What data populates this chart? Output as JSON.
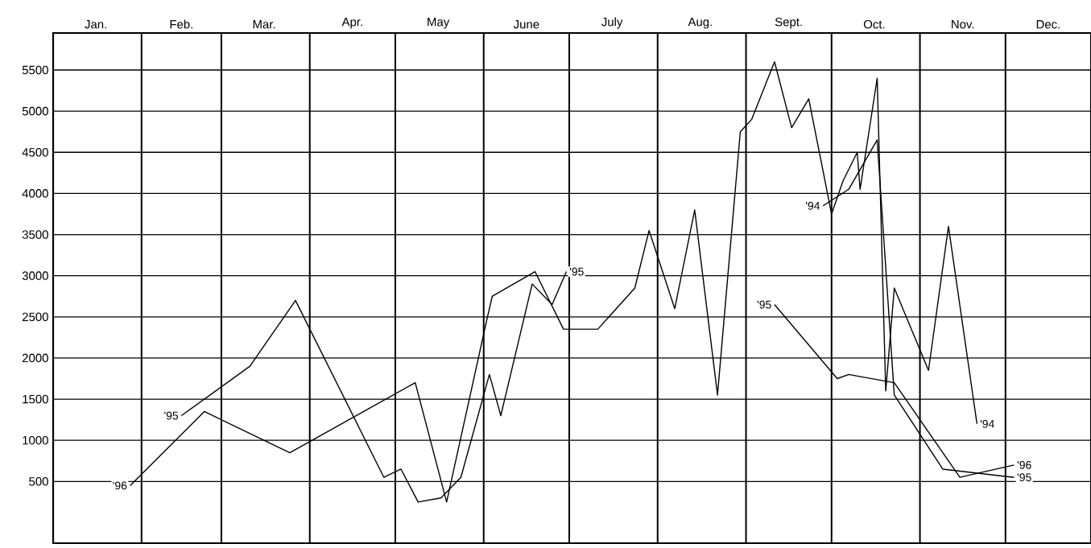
{
  "chart_data": {
    "type": "line",
    "xlim": [
      "--01-01",
      "--12-31"
    ],
    "ylim": [
      -250,
      5950
    ],
    "xticks": [
      {
        "value": "--01-01",
        "label": null
      },
      {
        "value": "--02-01",
        "label": null
      },
      {
        "value": "--03-01",
        "label": null
      },
      {
        "value": "--04-01",
        "label": null
      },
      {
        "value": "--05-01",
        "label": null
      },
      {
        "value": "--06-01",
        "label": null
      },
      {
        "value": "--07-01",
        "label": null
      },
      {
        "value": "--08-01",
        "label": null
      },
      {
        "value": "--09-01",
        "label": null
      },
      {
        "value": "--10-01",
        "label": null
      },
      {
        "value": "--11-01",
        "label": null
      },
      {
        "value": "--12-01",
        "label": null
      },
      {
        "value": "--01-16",
        "label": "Jan."
      },
      {
        "value": "--02-15",
        "label": "Feb."
      },
      {
        "value": "--03-16",
        "label": "Mar."
      },
      {
        "value": "--04-16",
        "label": "Apr."
      },
      {
        "value": "--05-16",
        "label": "May"
      },
      {
        "value": "--06-16",
        "label": "June"
      },
      {
        "value": "--07-16",
        "label": "July"
      },
      {
        "value": "--08-16",
        "label": "Aug."
      },
      {
        "value": "--09-16",
        "label": "Sept."
      },
      {
        "value": "--10-16",
        "label": "Oct."
      },
      {
        "value": "--11-16",
        "label": "Nov."
      },
      {
        "value": "--12-16",
        "label": "Dec."
      }
    ],
    "yticks": [
      500,
      1000,
      1500,
      2000,
      2500,
      3000,
      3500,
      4000,
      4500,
      5000,
      5500
    ],
    "grid": true,
    "series": [
      {
        "color": "#000000",
        "x": [
          "--01-28",
          "--02-23",
          "--03-25",
          "--05-08",
          "--05-19",
          "--06-02",
          "--06-04",
          "--06-19",
          "--06-29",
          "--07-11",
          "--07-24",
          "--07-29",
          "--08-07",
          "--08-14",
          "--08-22",
          "--08-30",
          "--09-03",
          "--09-11",
          "--09-17",
          "--09-23",
          "--10-01",
          "--10-05",
          "--10-10",
          "--10-11",
          "--10-17",
          "--10-20",
          "--10-23",
          "--11-04",
          "--11-11",
          "--11-21"
        ],
        "values": [
          450,
          1350,
          850,
          1700,
          250,
          2450,
          2750,
          3050,
          2350,
          2350,
          2850,
          3550,
          2600,
          3800,
          1550,
          4750,
          4900,
          5600,
          4800,
          5150,
          3750,
          4150,
          4500,
          4050,
          5400,
          1600,
          2850,
          1850,
          3600,
          1200
        ]
      },
      {
        "color": "#000000",
        "x": [
          "--02-15",
          "--03-11",
          "--03-27",
          "--04-27",
          "--05-03",
          "--05-09",
          "--05-17",
          "--05-24",
          "--06-03",
          "--06-07",
          "--06-18",
          "--06-25",
          "--06-30"
        ],
        "values": [
          1300,
          1900,
          2700,
          550,
          650,
          250,
          300,
          550,
          1800,
          1300,
          2900,
          2650,
          3050
        ]
      },
      {
        "color": "#000000",
        "x": [
          "--09-28",
          "--10-07",
          "--10-17",
          "--10-23",
          "--11-09",
          "--12-04"
        ],
        "values": [
          3850,
          4050,
          4650,
          1550,
          650,
          550
        ]
      },
      {
        "color": "#000000",
        "x": [
          "--09-11",
          "--10-03",
          "--10-07",
          "--10-23",
          "--11-15",
          "--12-04"
        ],
        "values": [
          2650,
          1750,
          1800,
          1700,
          550,
          700
        ]
      }
    ],
    "annotations": [
      {
        "text": "'96",
        "x": "--01-28",
        "y": 450
      },
      {
        "text": "'95",
        "x": "--02-15",
        "y": 1300
      },
      {
        "text": "'95",
        "x": "--06-30",
        "y": 3050
      },
      {
        "text": "'95",
        "x": "--09-11",
        "y": 2650
      },
      {
        "text": "'94",
        "x": "--09-28",
        "y": 3850
      },
      {
        "text": "'94",
        "x": "--11-21",
        "y": 1200
      },
      {
        "text": "'96",
        "x": "--12-04",
        "y": 700
      },
      {
        "text": "'95",
        "x": "--12-04",
        "y": 550
      }
    ]
  }
}
